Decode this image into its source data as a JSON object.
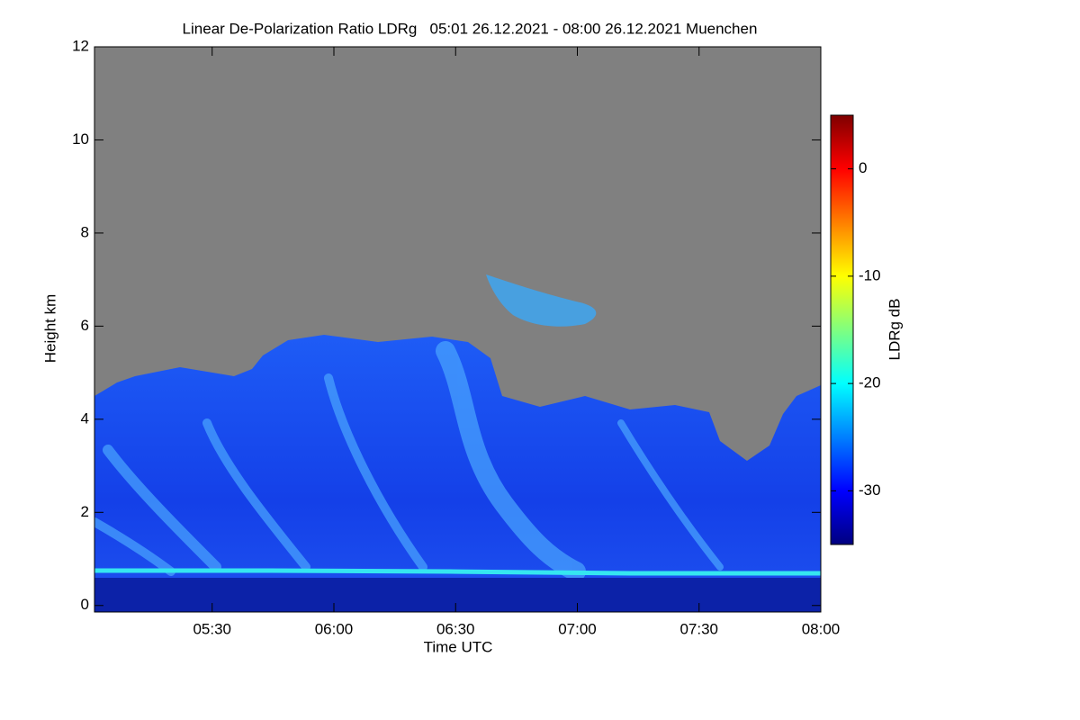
{
  "chart_data": {
    "type": "heatmap",
    "title": "Linear De-Polarization Ratio LDRg   05:01 26.12.2021 - 08:00 26.12.2021 Muenchen",
    "x_label": "Time UTC",
    "y_label": "Height km",
    "xlim": [
      "05:01",
      "08:00"
    ],
    "xticks": [
      "05:30",
      "06:00",
      "06:30",
      "07:00",
      "07:30",
      "08:00"
    ],
    "ylim": [
      -0.14,
      12
    ],
    "yticks": [
      0,
      2,
      4,
      6,
      8,
      10,
      12
    ],
    "colorbar": {
      "label": "LDRg dB",
      "colormap": "jet",
      "clim": [
        -35,
        5
      ],
      "ticks": [
        -30,
        -20,
        -10,
        0
      ]
    }
  }
}
